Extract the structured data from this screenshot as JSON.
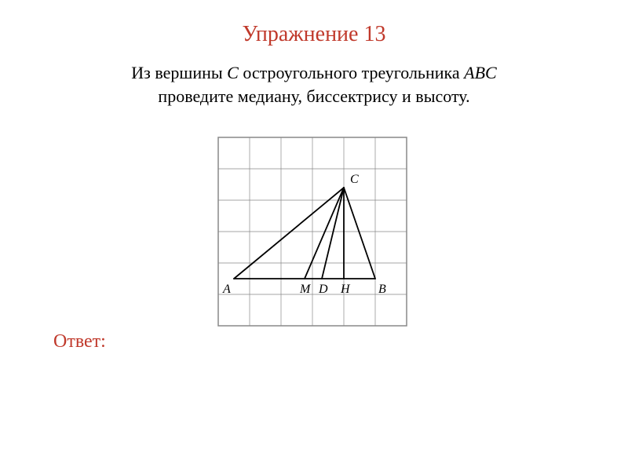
{
  "title": {
    "text": "Упражнение 13",
    "color": "#c0392b",
    "fontsize": 28
  },
  "problem": {
    "line1_pre": "Из вершины ",
    "line1_var1": "C",
    "line1_mid": " остроугольного треугольника ",
    "line1_var2": "ABC",
    "line2": "проведите медиану, биссектрису и высоту.",
    "color": "#000000",
    "fontsize": 22
  },
  "answer": {
    "label": "Ответ:",
    "color": "#c0392b",
    "fontsize": 24
  },
  "diagram": {
    "type": "geometry-grid",
    "grid": {
      "cols": 6,
      "rows": 6,
      "cell": 40,
      "border_color": "#888888",
      "outer_stroke": 1.5,
      "inner_stroke": 0.7
    },
    "points": {
      "A": {
        "gx": 0.5,
        "gy": 4.5,
        "label_dx": -14,
        "label_dy": 18
      },
      "M": {
        "gx": 2.75,
        "gy": 4.5,
        "label_dx": -6,
        "label_dy": 18
      },
      "D": {
        "gx": 3.3,
        "gy": 4.5,
        "label_dx": -4,
        "label_dy": 18
      },
      "H": {
        "gx": 4.0,
        "gy": 4.5,
        "label_dx": -4,
        "label_dy": 18
      },
      "B": {
        "gx": 5.0,
        "gy": 4.5,
        "label_dx": 4,
        "label_dy": 18
      },
      "C": {
        "gx": 4.0,
        "gy": 1.6,
        "label_dx": 8,
        "label_dy": -6
      }
    },
    "segments": [
      {
        "from": "A",
        "to": "B"
      },
      {
        "from": "A",
        "to": "C"
      },
      {
        "from": "B",
        "to": "C"
      },
      {
        "from": "C",
        "to": "M"
      },
      {
        "from": "C",
        "to": "D"
      },
      {
        "from": "C",
        "to": "H"
      }
    ],
    "line_color": "#000000",
    "line_width": 1.8,
    "label_fontsize": 16,
    "label_font": "italic 16px Georgia"
  }
}
